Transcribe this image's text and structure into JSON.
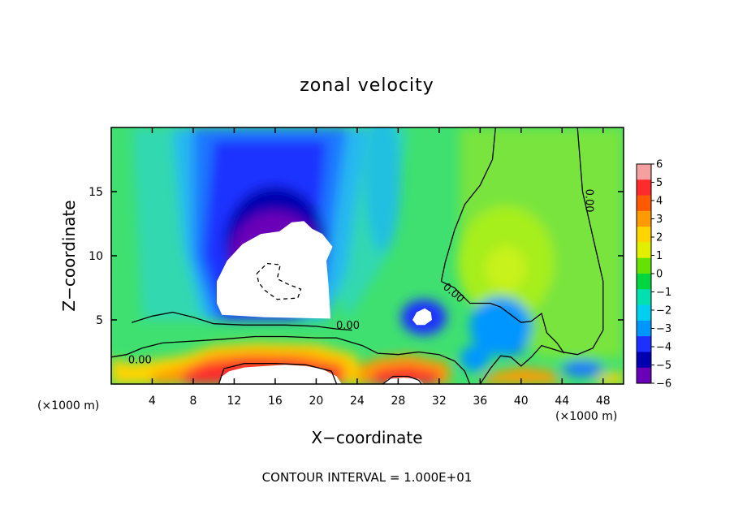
{
  "chart_data": {
    "type": "heatmap",
    "title": "zonal velocity",
    "xlabel": "X−coordinate",
    "ylabel": "Z−coordinate",
    "x_units": "(×1000 m)",
    "x_units_right": "(×1000 m)",
    "xlim": [
      0,
      50
    ],
    "ylim": [
      0,
      20
    ],
    "x_ticks": [
      4,
      8,
      12,
      16,
      20,
      24,
      28,
      32,
      36,
      40,
      44,
      48
    ],
    "y_ticks": [
      5,
      10,
      15
    ],
    "colorbar": {
      "range": [
        -6,
        6
      ],
      "ticks": [
        "6",
        "5",
        "4",
        "3",
        "2",
        "1",
        "0",
        "−1",
        "−2",
        "−3",
        "−4",
        "−5",
        "−6"
      ],
      "colors": [
        "#f5a0a0",
        "#ff2a2a",
        "#ff5a00",
        "#ff9a00",
        "#ffd400",
        "#e2f000",
        "#66e200",
        "#00d640",
        "#00e0b0",
        "#00d0f0",
        "#0096ff",
        "#1e30ff",
        "#0000b0",
        "#6a00b8"
      ]
    },
    "contour_labels": [
      "0.00",
      "0.00",
      "0.00",
      "0.00",
      "0.00"
    ],
    "footer": "CONTOUR INTERVAL = 1.000E+01",
    "field_features": [
      {
        "kind": "blob",
        "sign": "negative",
        "x": 15.5,
        "z": 9.0,
        "value": -7,
        "note": "saturated core (white)"
      },
      {
        "kind": "blob",
        "sign": "negative",
        "x": 16.0,
        "z": 14.0,
        "value": -4.5
      },
      {
        "kind": "blob",
        "sign": "negative",
        "x": 30.5,
        "z": 5.2,
        "value": -7
      },
      {
        "kind": "blob",
        "sign": "negative",
        "x": 39.0,
        "z": 4.0,
        "value": -4.5
      },
      {
        "kind": "blob",
        "sign": "positive",
        "x": 38.5,
        "z": 9.0,
        "value": 1.2
      },
      {
        "kind": "band",
        "sign": "positive",
        "x": 17.0,
        "z": 1.3,
        "value": 5.5
      }
    ]
  }
}
